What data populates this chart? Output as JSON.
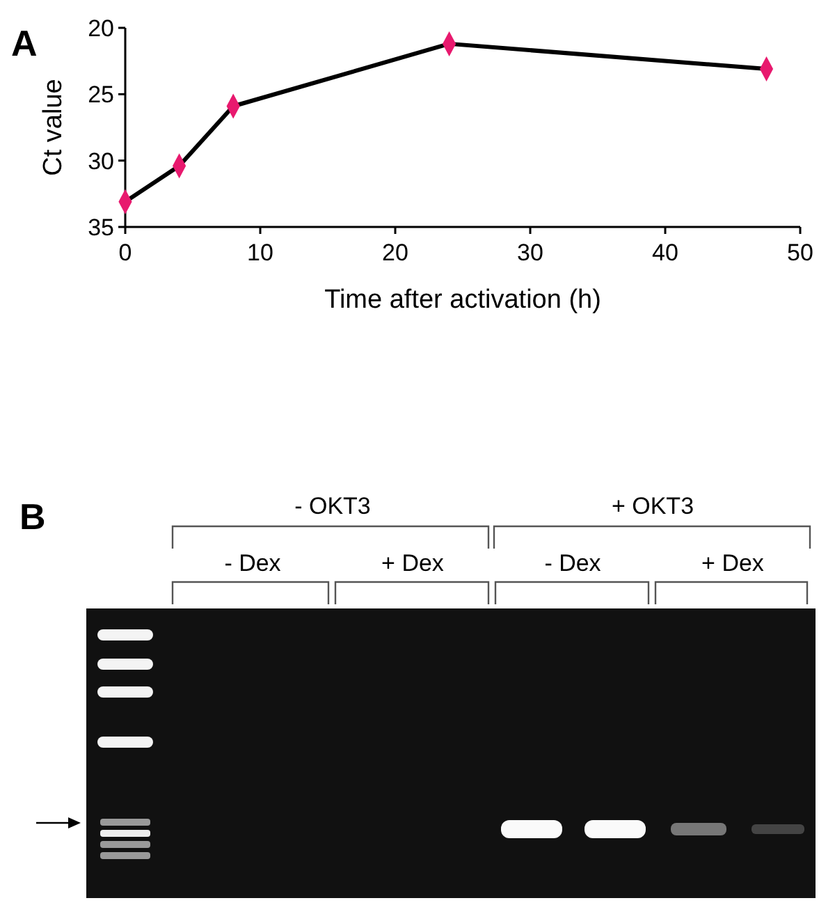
{
  "chart_data": [
    {
      "type": "line",
      "xlabel": "Time after activation (h)",
      "ylabel": "Ct value",
      "annotations": [
        "A"
      ],
      "x": [
        0,
        4,
        8,
        24,
        47.5
      ],
      "series": [
        {
          "type": "line",
          "color": "#000000",
          "marker": "none",
          "values": [
            33.1,
            30.4,
            25.9,
            21.2,
            23.1
          ]
        },
        {
          "type": "scatter",
          "color": "#e8196e",
          "marker": "diamond",
          "values": [
            33.1,
            30.4,
            25.9,
            21.2,
            23.1
          ]
        }
      ],
      "line_style": "solid",
      "legend": false,
      "xlim": [
        0,
        50
      ],
      "xticks": [
        0,
        10,
        20,
        30,
        40,
        50
      ],
      "ylim": [
        35,
        20
      ],
      "yticks": [
        20,
        25,
        30,
        35
      ],
      "grid": false
    },
    {
      "type": "other",
      "annotations": [
        "B",
        "- OKT3",
        "+ OKT3",
        "- Dex",
        "+ Dex",
        "- Dex",
        "+ Dex"
      ]
    }
  ]
}
